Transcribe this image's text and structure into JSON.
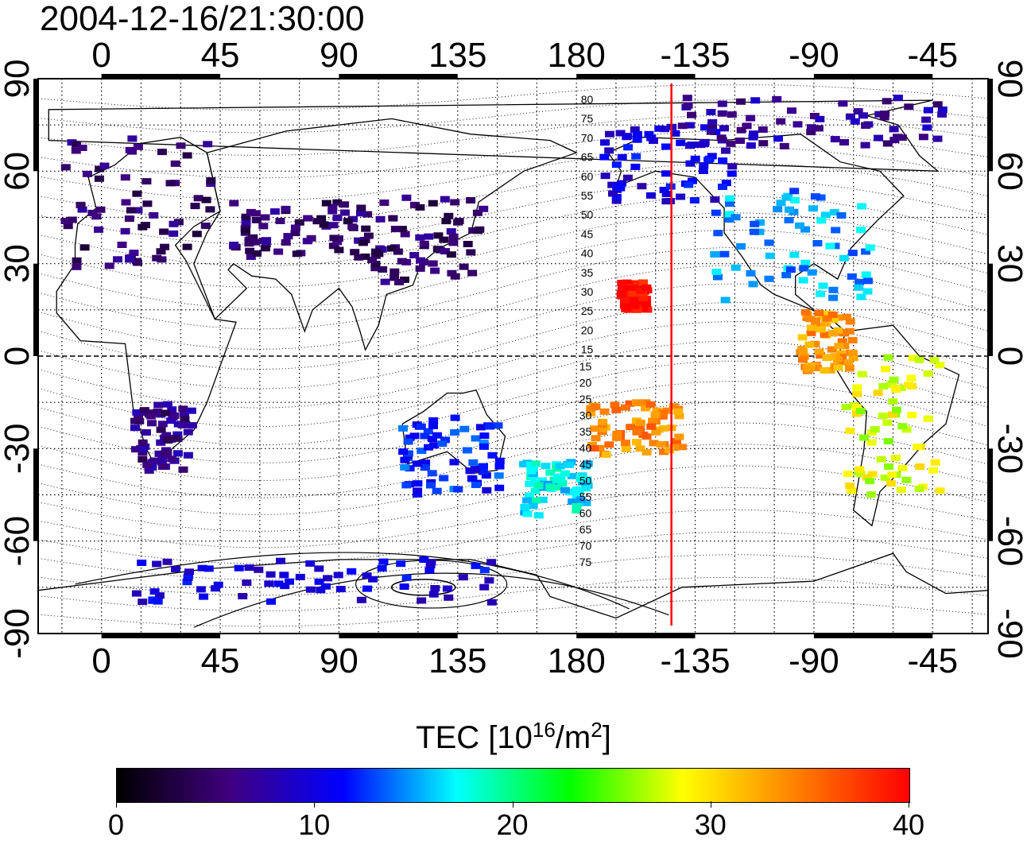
{
  "title": "2004-12-16/21:30:00",
  "map": {
    "lon_tick_labels": [
      "0",
      "45",
      "90",
      "135",
      "180",
      "-135",
      "-90",
      "-45"
    ],
    "lat_tick_labels": [
      "90",
      "60",
      "30",
      "0",
      "-30",
      "-60",
      "-90"
    ],
    "terminator_line_color": "#ff0000",
    "contour_labels_north": [
      "80",
      "75",
      "70",
      "65",
      "60",
      "55",
      "50",
      "45",
      "40",
      "35",
      "30",
      "25",
      "20",
      "15"
    ],
    "contour_labels_south": [
      "15",
      "20",
      "25",
      "30",
      "35",
      "40",
      "45",
      "50",
      "55",
      "60",
      "65",
      "70",
      "75"
    ],
    "tec_patches": [
      {
        "region": "Europe",
        "level": 5
      },
      {
        "region": "East Asia",
        "level": 5
      },
      {
        "region": "Central Asia",
        "level": 5
      },
      {
        "region": "North America",
        "level": 15
      },
      {
        "region": "Alaska/Canada",
        "level": 10
      },
      {
        "region": "Arctic",
        "level": 7
      },
      {
        "region": "South America",
        "level": 28
      },
      {
        "region": "Central America",
        "level": 33
      },
      {
        "region": "Hawaii",
        "level": 40
      },
      {
        "region": "South Pacific",
        "level": 34
      },
      {
        "region": "New Zealand",
        "level": 17
      },
      {
        "region": "Australia",
        "level": 12
      },
      {
        "region": "Southern Africa",
        "level": 6
      },
      {
        "region": "Antarctica",
        "level": 10
      }
    ]
  },
  "colorbar": {
    "title_main": "TEC  [10",
    "title_sup1": "16",
    "title_mid": "/m",
    "title_sup2": "2",
    "title_end": "]",
    "min": 0,
    "max": 40,
    "tick_labels": [
      "0",
      "10",
      "20",
      "30",
      "40"
    ],
    "colors": [
      "#000000",
      "#400080",
      "#0000ff",
      "#00ffff",
      "#00ff00",
      "#ffff00",
      "#ff8000",
      "#ff0000"
    ]
  }
}
